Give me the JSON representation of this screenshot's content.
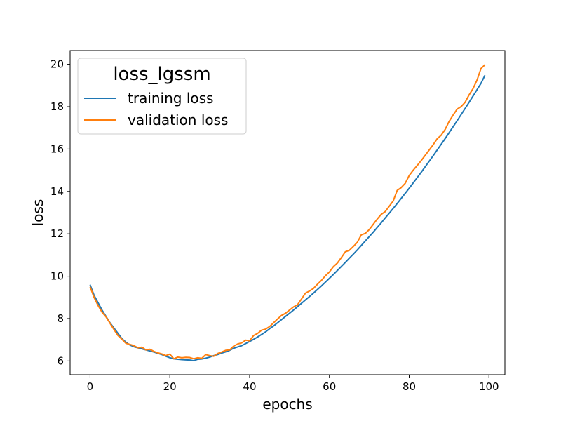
{
  "chart_data": {
    "type": "line",
    "title": "",
    "xlabel": "epochs",
    "ylabel": "loss",
    "xlim": [
      -5,
      104
    ],
    "ylim": [
      5.35,
      20.65
    ],
    "xticks": [
      0,
      20,
      40,
      60,
      80,
      100
    ],
    "yticks": [
      6,
      8,
      10,
      12,
      14,
      16,
      18,
      20
    ],
    "grid": false,
    "legend": {
      "title": "loss_lgssm",
      "placement": "upper-left"
    },
    "x": [
      0,
      1,
      2,
      3,
      4,
      5,
      6,
      7,
      8,
      9,
      10,
      11,
      12,
      13,
      14,
      15,
      16,
      17,
      18,
      19,
      20,
      21,
      22,
      23,
      24,
      25,
      26,
      27,
      28,
      29,
      30,
      31,
      32,
      33,
      34,
      35,
      36,
      37,
      38,
      39,
      40,
      41,
      42,
      43,
      44,
      45,
      46,
      47,
      48,
      49,
      50,
      51,
      52,
      53,
      54,
      55,
      56,
      57,
      58,
      59,
      60,
      61,
      62,
      63,
      64,
      65,
      66,
      67,
      68,
      69,
      70,
      71,
      72,
      73,
      74,
      75,
      76,
      77,
      78,
      79,
      80,
      81,
      82,
      83,
      84,
      85,
      86,
      87,
      88,
      89,
      90,
      91,
      92,
      93,
      94,
      95,
      96,
      97,
      98,
      99
    ],
    "series": [
      {
        "name": "training loss",
        "color": "#1f77b4",
        "values": [
          9.6,
          9.1,
          8.75,
          8.4,
          8.1,
          7.8,
          7.55,
          7.3,
          7.05,
          6.88,
          6.75,
          6.67,
          6.62,
          6.57,
          6.52,
          6.47,
          6.42,
          6.36,
          6.3,
          6.22,
          6.15,
          6.1,
          6.08,
          6.06,
          6.05,
          6.04,
          6.01,
          6.08,
          6.09,
          6.13,
          6.18,
          6.25,
          6.3,
          6.37,
          6.43,
          6.5,
          6.6,
          6.66,
          6.72,
          6.82,
          6.92,
          7.02,
          7.13,
          7.25,
          7.37,
          7.52,
          7.65,
          7.8,
          7.95,
          8.1,
          8.25,
          8.4,
          8.56,
          8.72,
          8.88,
          9.04,
          9.2,
          9.37,
          9.54,
          9.72,
          9.9,
          10.08,
          10.27,
          10.46,
          10.65,
          10.85,
          11.04,
          11.24,
          11.45,
          11.66,
          11.87,
          12.08,
          12.3,
          12.52,
          12.75,
          12.97,
          13.2,
          13.43,
          13.67,
          13.91,
          14.15,
          14.4,
          14.65,
          14.9,
          15.16,
          15.42,
          15.68,
          15.95,
          16.22,
          16.49,
          16.77,
          17.05,
          17.33,
          17.62,
          17.91,
          18.2,
          18.5,
          18.8,
          19.1,
          19.48
        ]
      },
      {
        "name": "validation loss",
        "color": "#ff7f0e",
        "values": [
          9.5,
          9.0,
          8.62,
          8.3,
          8.08,
          7.78,
          7.48,
          7.2,
          7.02,
          6.83,
          6.78,
          6.72,
          6.62,
          6.65,
          6.52,
          6.55,
          6.45,
          6.38,
          6.33,
          6.25,
          6.32,
          6.1,
          6.18,
          6.15,
          6.17,
          6.16,
          6.1,
          6.15,
          6.12,
          6.3,
          6.25,
          6.22,
          6.35,
          6.42,
          6.5,
          6.52,
          6.7,
          6.8,
          6.85,
          6.98,
          6.95,
          7.2,
          7.3,
          7.45,
          7.5,
          7.62,
          7.8,
          7.98,
          8.15,
          8.25,
          8.4,
          8.55,
          8.65,
          8.92,
          9.2,
          9.3,
          9.42,
          9.62,
          9.8,
          10.02,
          10.2,
          10.45,
          10.62,
          10.88,
          11.15,
          11.22,
          11.4,
          11.6,
          11.95,
          12.02,
          12.2,
          12.45,
          12.7,
          12.92,
          13.05,
          13.3,
          13.55,
          14.05,
          14.18,
          14.38,
          14.75,
          15.0,
          15.22,
          15.45,
          15.7,
          15.95,
          16.2,
          16.48,
          16.65,
          16.92,
          17.3,
          17.6,
          17.88,
          18.0,
          18.2,
          18.55,
          18.85,
          19.25,
          19.8,
          19.98
        ]
      }
    ]
  }
}
